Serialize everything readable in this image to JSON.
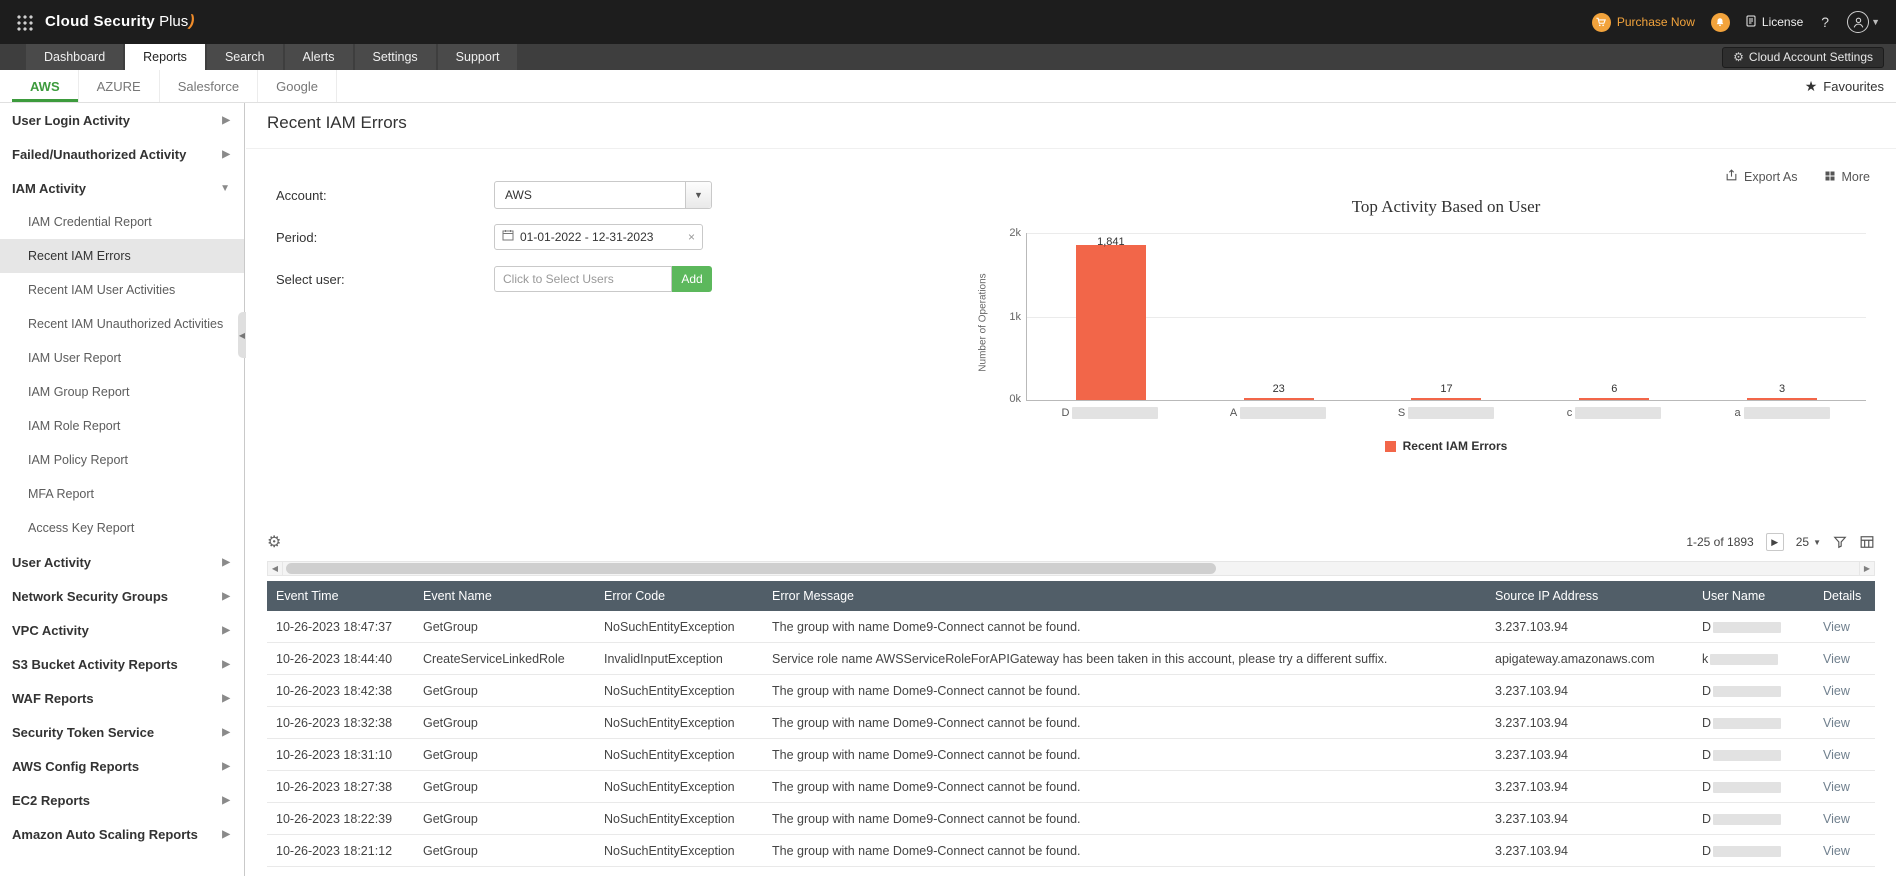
{
  "topbar": {
    "logo_part1": "Cloud Security",
    "logo_part2": "Plus",
    "purchase_now_label": "Purchase Now",
    "license_label": "License",
    "help_label": "?"
  },
  "navbar": {
    "tabs": [
      {
        "label": "Dashboard"
      },
      {
        "label": "Reports"
      },
      {
        "label": "Search"
      },
      {
        "label": "Alerts"
      },
      {
        "label": "Settings"
      },
      {
        "label": "Support"
      }
    ],
    "active_tab": "Reports",
    "cloud_account_settings_label": "Cloud Account Settings"
  },
  "subnav": {
    "tabs": [
      {
        "label": "AWS"
      },
      {
        "label": "AZURE"
      },
      {
        "label": "Salesforce"
      },
      {
        "label": "Google"
      }
    ],
    "active_tab": "AWS",
    "favourites_label": "Favourites"
  },
  "sidebar": {
    "sections": [
      {
        "label": "User Login Activity",
        "state": "collapsed"
      },
      {
        "label": "Failed/Unauthorized Activity",
        "state": "collapsed"
      },
      {
        "label": "IAM Activity",
        "state": "expanded",
        "children": [
          "IAM Credential Report",
          "Recent IAM Errors",
          "Recent IAM User Activities",
          "Recent IAM Unauthorized Activities",
          "IAM User Report",
          "IAM Group Report",
          "IAM Role Report",
          "IAM Policy Report",
          "MFA Report",
          "Access Key Report"
        ],
        "selected_child": "Recent IAM Errors"
      },
      {
        "label": "User Activity",
        "state": "collapsed"
      },
      {
        "label": "Network Security Groups",
        "state": "collapsed"
      },
      {
        "label": "VPC Activity",
        "state": "collapsed"
      },
      {
        "label": "S3 Bucket Activity Reports",
        "state": "collapsed"
      },
      {
        "label": "WAF Reports",
        "state": "collapsed"
      },
      {
        "label": "Security Token Service",
        "state": "collapsed"
      },
      {
        "label": "AWS Config Reports",
        "state": "collapsed"
      },
      {
        "label": "EC2 Reports",
        "state": "collapsed"
      },
      {
        "label": "Amazon Auto Scaling Reports",
        "state": "collapsed"
      }
    ]
  },
  "main": {
    "title": "Recent IAM Errors",
    "actions": {
      "export_as": "Export As",
      "more": "More"
    },
    "filters": {
      "account_label": "Account:",
      "account_value": "AWS",
      "period_label": "Period:",
      "period_value": "01-01-2022 - 12-31-2023",
      "period_clear": "×",
      "select_user_label": "Select user:",
      "select_user_placeholder": "Click to Select Users",
      "add_button": "Add"
    }
  },
  "chart_data": {
    "type": "bar",
    "title": "Top Activity Based on User",
    "xlabel": "",
    "ylabel": "Number of Operations",
    "ylim": [
      0,
      2000
    ],
    "ytick_labels": [
      "2k",
      "1k",
      "0k"
    ],
    "categories": [
      {
        "initial": "D",
        "redacted": true
      },
      {
        "initial": "A",
        "redacted": true
      },
      {
        "initial": "S",
        "redacted": true
      },
      {
        "initial": "c",
        "redacted": true
      },
      {
        "initial": "a",
        "redacted": true
      }
    ],
    "values": [
      1841,
      23,
      17,
      6,
      3
    ],
    "value_labels": [
      "1,841",
      "23",
      "17",
      "6",
      "3"
    ],
    "series_name": "Recent IAM Errors",
    "bar_color": "#f26649",
    "grid": true,
    "legend_position": "bottom"
  },
  "table": {
    "toolbar": {
      "pagination": "1-25 of 1893",
      "page_size": "25"
    },
    "columns": [
      "Event Time",
      "Event Name",
      "Error Code",
      "Error Message",
      "Source IP Address",
      "User Name",
      "Details"
    ],
    "rows": [
      {
        "event_time": "10-26-2023 18:47:37",
        "event_name": "GetGroup",
        "error_code": "NoSuchEntityException",
        "error_message": "The group with name Dome9-Connect cannot be found.",
        "source_ip": "3.237.103.94",
        "user_initial": "D",
        "user_redacted": true,
        "details": "View"
      },
      {
        "event_time": "10-26-2023 18:44:40",
        "event_name": "CreateServiceLinkedRole",
        "error_code": "InvalidInputException",
        "error_message": "Service role name AWSServiceRoleForAPIGateway has been taken in this account, please try a different suffix.",
        "source_ip": "apigateway.amazonaws.com",
        "user_initial": "k",
        "user_redacted": true,
        "details": "View"
      },
      {
        "event_time": "10-26-2023 18:42:38",
        "event_name": "GetGroup",
        "error_code": "NoSuchEntityException",
        "error_message": "The group with name Dome9-Connect cannot be found.",
        "source_ip": "3.237.103.94",
        "user_initial": "D",
        "user_redacted": true,
        "details": "View"
      },
      {
        "event_time": "10-26-2023 18:32:38",
        "event_name": "GetGroup",
        "error_code": "NoSuchEntityException",
        "error_message": "The group with name Dome9-Connect cannot be found.",
        "source_ip": "3.237.103.94",
        "user_initial": "D",
        "user_redacted": true,
        "details": "View"
      },
      {
        "event_time": "10-26-2023 18:31:10",
        "event_name": "GetGroup",
        "error_code": "NoSuchEntityException",
        "error_message": "The group with name Dome9-Connect cannot be found.",
        "source_ip": "3.237.103.94",
        "user_initial": "D",
        "user_redacted": true,
        "details": "View"
      },
      {
        "event_time": "10-26-2023 18:27:38",
        "event_name": "GetGroup",
        "error_code": "NoSuchEntityException",
        "error_message": "The group with name Dome9-Connect cannot be found.",
        "source_ip": "3.237.103.94",
        "user_initial": "D",
        "user_redacted": true,
        "details": "View"
      },
      {
        "event_time": "10-26-2023 18:22:39",
        "event_name": "GetGroup",
        "error_code": "NoSuchEntityException",
        "error_message": "The group with name Dome9-Connect cannot be found.",
        "source_ip": "3.237.103.94",
        "user_initial": "D",
        "user_redacted": true,
        "details": "View"
      },
      {
        "event_time": "10-26-2023 18:21:12",
        "event_name": "GetGroup",
        "error_code": "NoSuchEntityException",
        "error_message": "The group with name Dome9-Connect cannot be found.",
        "source_ip": "3.237.103.94",
        "user_initial": "D",
        "user_redacted": true,
        "details": "View"
      }
    ]
  }
}
